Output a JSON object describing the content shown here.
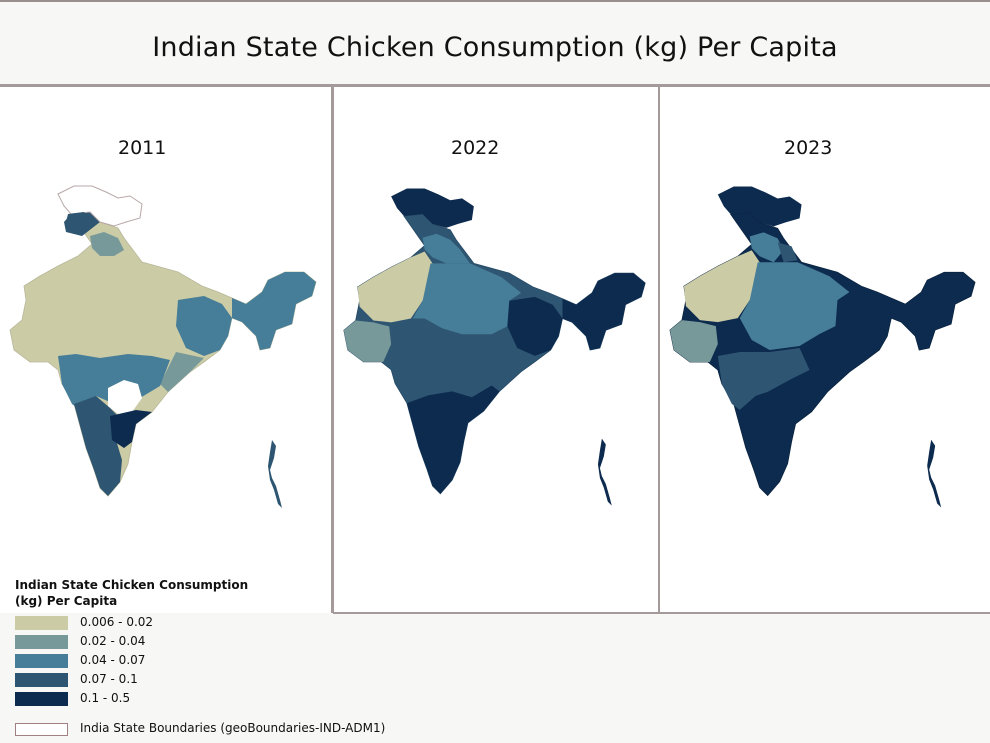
{
  "title": "Indian State Chicken Consumption (kg) Per Capita",
  "panels": [
    {
      "year": "2011"
    },
    {
      "year": "2022"
    },
    {
      "year": "2023"
    }
  ],
  "legend": {
    "title": "Indian State Chicken Consumption (kg) Per Capita",
    "classes": [
      {
        "label": "0.006 - 0.02",
        "color": "#cbcba6"
      },
      {
        "label": "0.02 - 0.04",
        "color": "#78999a"
      },
      {
        "label": "0.04 - 0.07",
        "color": "#467d98"
      },
      {
        "label": "0.07 - 0.1",
        "color": "#2e5571"
      },
      {
        "label": "0.1 - 0.5",
        "color": "#0d2b4f"
      }
    ],
    "boundary_label": "India State Boundaries (geoBoundaries-IND-ADM1)"
  }
}
